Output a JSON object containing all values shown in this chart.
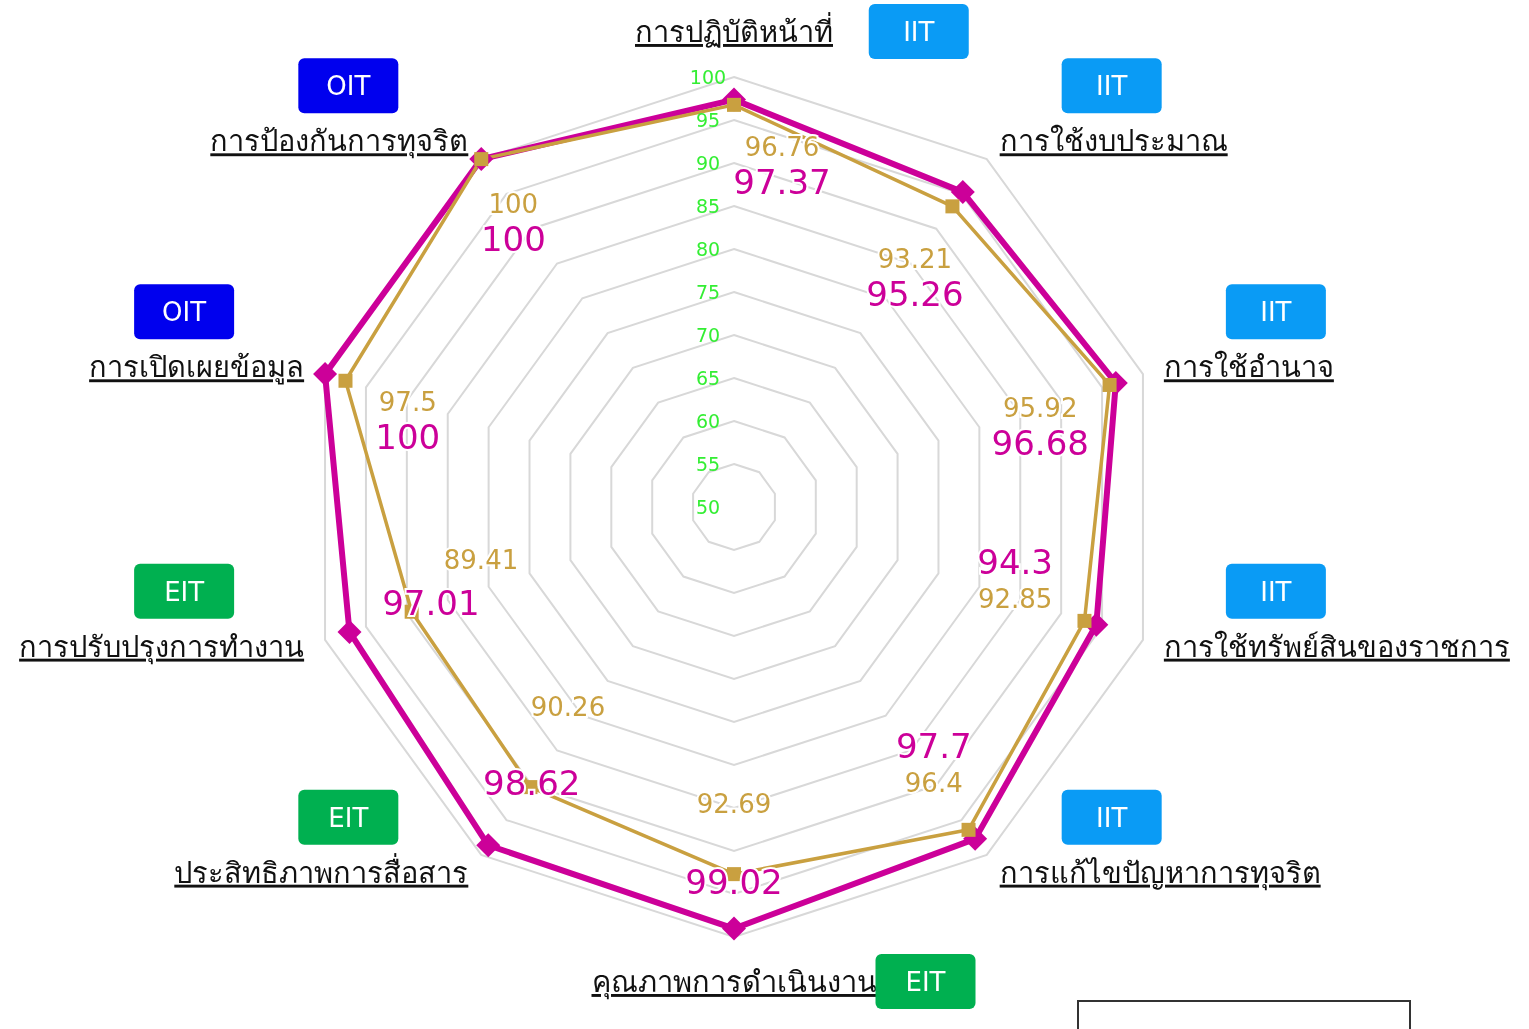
{
  "chart_data": {
    "type": "radar",
    "categories": [
      "การปฏิบัติหน้าที่",
      "การใช้งบประมาณ",
      "การใช้อำนาจ",
      "การใช้ทรัพย์สินของราชการ",
      "การแก้ไขปัญหาการทุจริต",
      "คุณภาพการดำเนินงาน",
      "ประสิทธิภาพการสื่อสาร",
      "การปรับปรุงการทำงาน",
      "การเปิดเผยข้อมูล",
      "การป้องกันการทุจริต"
    ],
    "series": [
      {
        "color": "#cc0099",
        "marker": "diamond",
        "values": [
          97.37,
          95.26,
          96.68,
          94.3,
          97.7,
          99.02,
          98.62,
          97.01,
          100,
          100
        ]
      },
      {
        "color": "#c9a040",
        "marker": "square",
        "values": [
          96.76,
          93.21,
          95.92,
          92.85,
          96.4,
          92.69,
          90.26,
          89.41,
          97.5,
          100
        ]
      }
    ],
    "ylim": [
      50,
      100
    ],
    "yticks": [
      50,
      55,
      60,
      65,
      70,
      75,
      80,
      85,
      90,
      95,
      100
    ],
    "grid": true,
    "legend": false,
    "data_labels": true,
    "annotations": [
      {
        "text": "IIT",
        "x": "การปฏิบัติหน้าที่"
      },
      {
        "text": "IIT",
        "x": "การใช้งบประมาณ"
      },
      {
        "text": "IIT",
        "x": "การใช้อำนาจ"
      },
      {
        "text": "IIT",
        "x": "การใช้ทรัพย์สินของราชการ"
      },
      {
        "text": "IIT",
        "x": "การแก้ไขปัญหาการทุจริต"
      },
      {
        "text": "EIT",
        "x": "คุณภาพการดำเนินงาน"
      },
      {
        "text": "EIT",
        "x": "ประสิทธิภาพการสื่อสาร"
      },
      {
        "text": "EIT",
        "x": "การปรับปรุงการทำงาน"
      },
      {
        "text": "OIT",
        "x": "การเปิดเผยข้อมูล"
      },
      {
        "text": "OIT",
        "x": "การป้องกันการทุจริต"
      }
    ]
  }
}
